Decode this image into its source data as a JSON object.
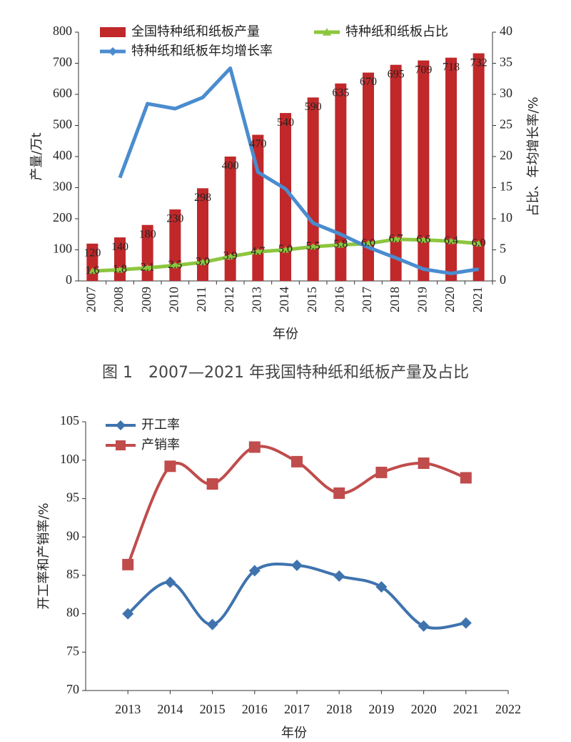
{
  "chart_data": [
    {
      "type": "combo",
      "caption": "图 1　2007—2021 年我国特种纸和纸板产量及占比",
      "x_label": "年份",
      "y_label": "产量/万t",
      "y2_label": "占比、年均增长率/%",
      "categories": [
        "2007",
        "2008",
        "2009",
        "2010",
        "2011",
        "2012",
        "2013",
        "2014",
        "2015",
        "2016",
        "2017",
        "2018",
        "2019",
        "2020",
        "2021"
      ],
      "ylim": [
        0,
        800
      ],
      "yticks": [
        0,
        100,
        200,
        300,
        400,
        500,
        600,
        700,
        800
      ],
      "y2lim": [
        0,
        40
      ],
      "y2ticks": [
        0,
        5,
        10,
        15,
        20,
        25,
        30,
        35,
        40
      ],
      "series": [
        {
          "name": "全国特种纸和纸板产量",
          "type": "bar",
          "color": "#c0282a",
          "values": [
            120,
            140,
            180,
            230,
            298,
            400,
            470,
            540,
            590,
            635,
            670,
            695,
            709,
            718,
            732
          ]
        },
        {
          "name": "特种纸和纸板占比",
          "type": "line",
          "axis": "y2",
          "color": "#8dc63f",
          "marker": "triangle",
          "values": [
            1.6,
            1.8,
            2.1,
            2.5,
            3.0,
            3.9,
            4.7,
            5.0,
            5.5,
            5.8,
            6.0,
            6.7,
            6.6,
            6.4,
            6.0
          ],
          "value_labels": [
            "1.6",
            "1.8",
            "2.1",
            "2.5",
            "3.0",
            "3.9",
            "4.7",
            "5.0",
            "5.5",
            "5.8",
            "6.0",
            "6.7",
            "6.6",
            "6.4",
            "6.0"
          ]
        },
        {
          "name": "特种纸和纸板年均增长率",
          "type": "line",
          "axis": "y2",
          "color": "#4a8ccf",
          "marker": "diamond",
          "values": [
            null,
            16.6,
            28.5,
            27.7,
            29.5,
            34.2,
            17.5,
            14.8,
            9.3,
            7.5,
            5.4,
            3.7,
            1.9,
            1.2,
            1.9
          ]
        }
      ]
    },
    {
      "type": "line",
      "smooth": true,
      "x_label": "年份",
      "y_label": "开工率和产销率/%",
      "x": [
        2013,
        2014,
        2015,
        2016,
        2017,
        2018,
        2019,
        2020,
        2021
      ],
      "xlim": [
        2012,
        2022
      ],
      "xticks": [
        2013,
        2014,
        2015,
        2016,
        2017,
        2018,
        2019,
        2020,
        2021,
        2022
      ],
      "ylim": [
        70,
        105
      ],
      "yticks": [
        70,
        75,
        80,
        85,
        90,
        95,
        100,
        105
      ],
      "series": [
        {
          "name": "开工率",
          "color": "#3f73ae",
          "marker": "diamond",
          "values": [
            80.0,
            84.1,
            78.6,
            85.6,
            86.3,
            84.9,
            83.5,
            78.4,
            78.8
          ]
        },
        {
          "name": "产销率",
          "color": "#c04c4c",
          "marker": "square",
          "values": [
            86.4,
            99.2,
            96.9,
            101.7,
            99.8,
            95.7,
            98.4,
            99.6,
            97.7
          ]
        }
      ]
    }
  ]
}
